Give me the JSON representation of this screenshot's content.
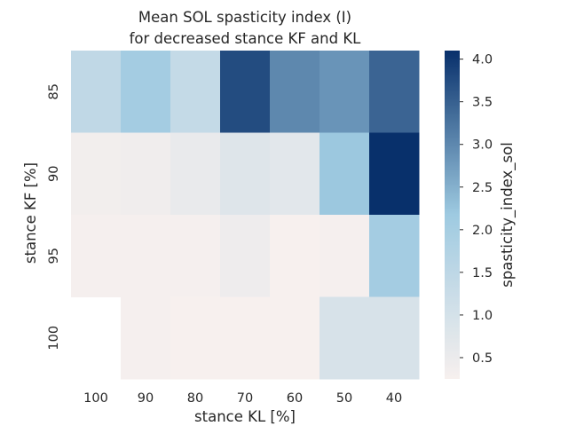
{
  "chart_data": {
    "type": "heatmap",
    "title_lines": [
      "Mean SOL spasticity index (I)",
      "for decreased stance KF and KL"
    ],
    "xlabel": "stance KL [%]",
    "ylabel": "stance KF [%]",
    "x_categories": [
      "100",
      "90",
      "80",
      "70",
      "60",
      "50",
      "40"
    ],
    "y_categories": [
      "85",
      "90",
      "95",
      "100"
    ],
    "values": [
      [
        1.45,
        2.05,
        1.35,
        3.75,
        3.0,
        2.85,
        3.45
      ],
      [
        0.35,
        0.4,
        0.55,
        0.8,
        0.7,
        2.2,
        4.1
      ],
      [
        0.3,
        0.3,
        0.3,
        0.45,
        0.22,
        0.3,
        2.05
      ],
      [
        null,
        0.3,
        0.25,
        0.25,
        0.2,
        0.95,
        0.95
      ]
    ],
    "colorbar": {
      "label": "spasticity_index_sol",
      "ticks": [
        0.5,
        1.0,
        1.5,
        2.0,
        2.5,
        3.0,
        3.5,
        4.0
      ],
      "tick_labels": [
        "0.5",
        "1.0",
        "1.5",
        "2.0",
        "2.5",
        "3.0",
        "3.5",
        "4.0"
      ],
      "vmin": 0.25,
      "vmax": 4.1,
      "colormap": "Blues",
      "low_color": "#f7f0ee",
      "mid_color": "#9ecae1",
      "high_color": "#08306b"
    },
    "grid": false
  }
}
